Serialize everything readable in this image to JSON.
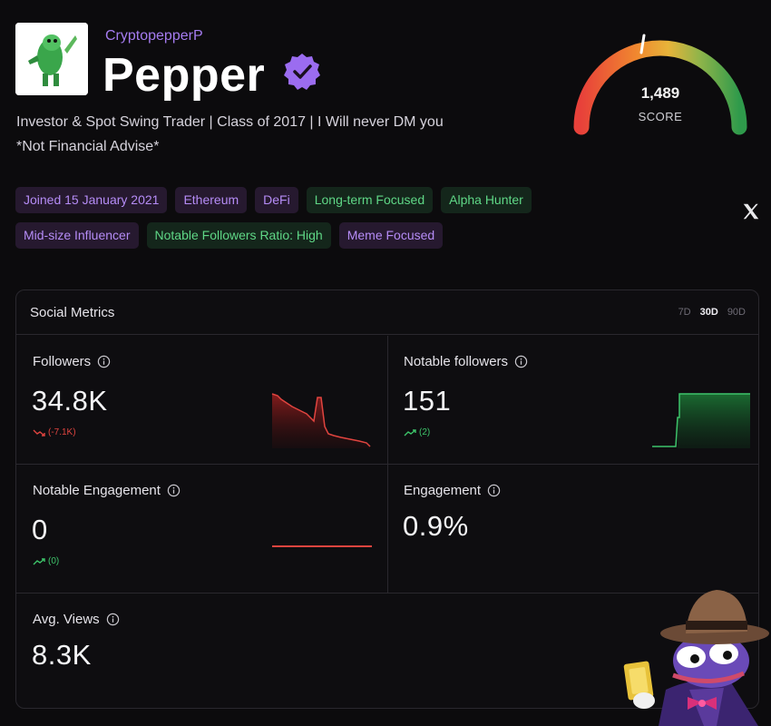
{
  "profile": {
    "username": "CryptopepperP",
    "display_name": "Pepper",
    "verified": true,
    "bio_line1": "Investor & Spot Swing Trader | Class of 2017 | I Will never DM you",
    "bio_line2": "*Not Financial Advise*"
  },
  "score": {
    "value": "1,489",
    "label": "SCORE"
  },
  "tags": {
    "row1": [
      {
        "label": "Joined 15 January 2021",
        "style": "purple"
      },
      {
        "label": "Ethereum",
        "style": "purple"
      },
      {
        "label": "DeFi",
        "style": "purple"
      },
      {
        "label": "Long-term Focused",
        "style": "green"
      },
      {
        "label": "Alpha Hunter",
        "style": "green"
      }
    ],
    "row2": [
      {
        "label": "Mid-size Influencer",
        "style": "purple"
      },
      {
        "label": "Notable Followers Ratio: High",
        "style": "green"
      },
      {
        "label": "Meme Focused",
        "style": "purple"
      }
    ]
  },
  "metrics": {
    "title": "Social Metrics",
    "periods": [
      "7D",
      "30D",
      "90D"
    ],
    "active_period": "30D",
    "followers": {
      "label": "Followers",
      "value": "34.8K",
      "change": "(-7.1K)"
    },
    "notable_followers": {
      "label": "Notable followers",
      "value": "151",
      "change": "(2)"
    },
    "notable_engagement": {
      "label": "Notable Engagement",
      "value": "0",
      "change": "(0)"
    },
    "engagement": {
      "label": "Engagement",
      "value": "0.9%"
    },
    "avg_views": {
      "label": "Avg. Views",
      "value": "8.3K"
    }
  },
  "colors": {
    "accent_purple": "#a57cf0",
    "up_green": "#3dc46a",
    "down_red": "#e0443f"
  },
  "icons": [
    "verified-badge-icon",
    "x-logo-icon",
    "info-icon",
    "trend-down-icon",
    "trend-up-icon"
  ]
}
